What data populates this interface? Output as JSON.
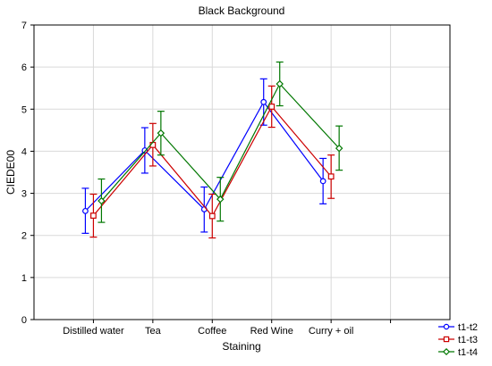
{
  "chart_data": {
    "type": "line",
    "title": "Black Background",
    "xlabel": "Staining",
    "ylabel": "CIEDE00",
    "ylim": [
      0,
      7
    ],
    "yticks": [
      0,
      1,
      2,
      3,
      4,
      5,
      6,
      7
    ],
    "categories": [
      "Distilled water",
      "Tea",
      "Coffee",
      "Red Wine",
      "Curry + oil"
    ],
    "grid": true,
    "legend_position": "bottom-right",
    "series": [
      {
        "name": "t1-t2",
        "color": "#0000ff",
        "marker": "circle",
        "values": [
          2.58,
          4.02,
          2.62,
          5.17,
          3.29
        ],
        "lower": [
          2.05,
          3.48,
          2.08,
          4.62,
          2.75
        ],
        "upper": [
          3.12,
          4.56,
          3.15,
          5.72,
          3.83
        ]
      },
      {
        "name": "t1-t3",
        "color": "#cc0000",
        "marker": "square",
        "values": [
          2.47,
          4.15,
          2.46,
          5.06,
          3.4
        ],
        "lower": [
          1.96,
          3.65,
          1.94,
          4.57,
          2.88
        ],
        "upper": [
          2.98,
          4.66,
          2.98,
          5.55,
          3.91
        ]
      },
      {
        "name": "t1-t4",
        "color": "#007700",
        "marker": "diamond",
        "values": [
          2.82,
          4.43,
          2.86,
          5.6,
          4.07
        ],
        "lower": [
          2.31,
          3.91,
          2.34,
          5.08,
          3.55
        ],
        "upper": [
          3.34,
          4.95,
          3.38,
          6.12,
          4.6
        ]
      }
    ]
  }
}
